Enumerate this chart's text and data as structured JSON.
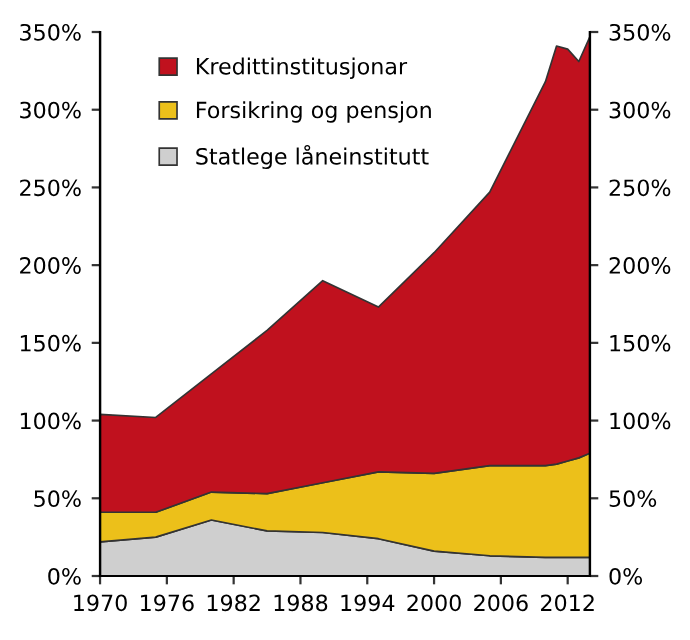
{
  "chart_data": {
    "type": "area",
    "stacked": true,
    "x": [
      1970,
      1975,
      1980,
      1985,
      1990,
      1995,
      2000,
      2005,
      2010,
      2011,
      2012,
      2013,
      2014
    ],
    "series": [
      {
        "name": "Statlege låneinstitutt",
        "color": "#cfcfcf",
        "values": [
          22,
          25,
          36,
          29,
          28,
          24,
          16,
          13,
          12,
          12,
          12,
          12,
          12
        ]
      },
      {
        "name": "Forsikring og pensjon",
        "color": "#ecc01a",
        "values": [
          19,
          16,
          18,
          24,
          32,
          43,
          50,
          58,
          59,
          60,
          62,
          64,
          67
        ]
      },
      {
        "name": "Kredittinstitusjonar",
        "color": "#c0111e",
        "values": [
          63,
          61,
          76,
          105,
          130,
          106,
          142,
          176,
          247,
          269,
          265,
          255,
          268
        ]
      }
    ],
    "xlim": [
      1970,
      2014
    ],
    "xticks": [
      1970,
      1976,
      1982,
      1988,
      1994,
      2000,
      2006,
      2012
    ],
    "ylim": [
      0,
      350
    ],
    "yticks": [
      {
        "value": 0,
        "label": "0%"
      },
      {
        "value": 50,
        "label": "50%"
      },
      {
        "value": 100,
        "label": "100%"
      },
      {
        "value": 150,
        "label": "150%"
      },
      {
        "value": 200,
        "label": "200%"
      },
      {
        "value": 250,
        "label": "250%"
      },
      {
        "value": 300,
        "label": "300%"
      },
      {
        "value": 350,
        "label": "350%"
      }
    ],
    "y2lim": [
      0,
      350
    ],
    "y2ticks": [
      {
        "value": 0,
        "label": "0%"
      },
      {
        "value": 50,
        "label": "50%"
      },
      {
        "value": 100,
        "label": "100%"
      },
      {
        "value": 150,
        "label": "150%"
      },
      {
        "value": 200,
        "label": "200%"
      },
      {
        "value": 250,
        "label": "250%"
      },
      {
        "value": 300,
        "label": "300%"
      },
      {
        "value": 350,
        "label": "350%"
      }
    ],
    "legend": "top left",
    "grid": false
  }
}
